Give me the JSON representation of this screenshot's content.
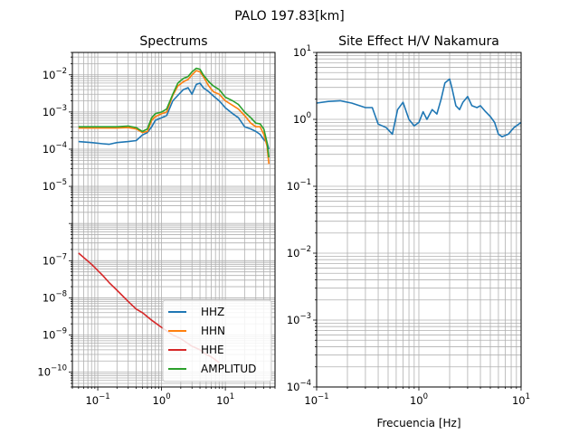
{
  "figure": {
    "suptitle": "PALO 197.83[km]"
  },
  "colors": {
    "HHZ": "#1f77b4",
    "HHN": "#ff7f0e",
    "HHE": "#d62728",
    "AMPLITUD": "#2ca02c",
    "HV": "#1f77b4"
  },
  "chart_data": [
    {
      "type": "line",
      "title": "Spectrums",
      "xlabel": "",
      "ylabel": "",
      "xscale": "log",
      "yscale": "log",
      "xlim": [
        0.04,
        60
      ],
      "ylim": [
        4e-11,
        0.04
      ],
      "grid": true,
      "grid_minor": true,
      "legend_position": "lower-right",
      "x_ticks": [
        {
          "value": 0.1,
          "base": "10",
          "exp": "−1"
        },
        {
          "value": 1,
          "base": "10",
          "exp": "0"
        },
        {
          "value": 10,
          "base": "10",
          "exp": "1"
        }
      ],
      "y_ticks": [
        {
          "value": 1e-10,
          "base": "10",
          "exp": "−10"
        },
        {
          "value": 1e-09,
          "base": "10",
          "exp": "−9"
        },
        {
          "value": 1e-08,
          "base": "10",
          "exp": "−8"
        },
        {
          "value": 1e-07,
          "base": "10",
          "exp": "−7"
        },
        {
          "value": 1e-05,
          "base": "10",
          "exp": "−5"
        },
        {
          "value": 0.0001,
          "base": "10",
          "exp": "−4"
        },
        {
          "value": 0.001,
          "base": "10",
          "exp": "−3"
        },
        {
          "value": 0.01,
          "base": "10",
          "exp": "−2"
        }
      ],
      "series": [
        {
          "name": "HHZ",
          "color": "#1f77b4",
          "points": [
            [
              0.05,
              0.00016
            ],
            [
              0.08,
              0.00015
            ],
            [
              0.12,
              0.00014
            ],
            [
              0.15,
              0.000135
            ],
            [
              0.2,
              0.00015
            ],
            [
              0.3,
              0.00016
            ],
            [
              0.4,
              0.00017
            ],
            [
              0.5,
              0.00024
            ],
            [
              0.6,
              0.00028
            ],
            [
              0.7,
              0.0004
            ],
            [
              0.8,
              0.0006
            ],
            [
              1.0,
              0.0007
            ],
            [
              1.2,
              0.0008
            ],
            [
              1.5,
              0.002
            ],
            [
              1.8,
              0.0028
            ],
            [
              2.2,
              0.004
            ],
            [
              2.6,
              0.0045
            ],
            [
              3.0,
              0.003
            ],
            [
              3.5,
              0.0055
            ],
            [
              4.0,
              0.006
            ],
            [
              4.5,
              0.0045
            ],
            [
              5.5,
              0.0035
            ],
            [
              6.5,
              0.0027
            ],
            [
              8,
              0.002
            ],
            [
              10,
              0.0013
            ],
            [
              13,
              0.0009
            ],
            [
              16,
              0.0007
            ],
            [
              20,
              0.0004
            ],
            [
              25,
              0.00035
            ],
            [
              30,
              0.0003
            ],
            [
              35,
              0.00025
            ],
            [
              40,
              0.00018
            ],
            [
              45,
              0.00015
            ],
            [
              48,
              0.0001
            ]
          ]
        },
        {
          "name": "HHN",
          "color": "#ff7f0e",
          "points": [
            [
              0.05,
              0.00037
            ],
            [
              0.08,
              0.00037
            ],
            [
              0.12,
              0.00037
            ],
            [
              0.2,
              0.00037
            ],
            [
              0.3,
              0.00038
            ],
            [
              0.4,
              0.00035
            ],
            [
              0.5,
              0.00028
            ],
            [
              0.6,
              0.0003
            ],
            [
              0.7,
              0.0006
            ],
            [
              0.8,
              0.00075
            ],
            [
              1.0,
              0.0009
            ],
            [
              1.2,
              0.001
            ],
            [
              1.5,
              0.0028
            ],
            [
              1.8,
              0.005
            ],
            [
              2.2,
              0.0065
            ],
            [
              2.6,
              0.0075
            ],
            [
              3.0,
              0.01
            ],
            [
              3.5,
              0.013
            ],
            [
              4.0,
              0.012
            ],
            [
              4.5,
              0.009
            ],
            [
              5.5,
              0.005
            ],
            [
              6.5,
              0.0035
            ],
            [
              8,
              0.003
            ],
            [
              10,
              0.002
            ],
            [
              13,
              0.0015
            ],
            [
              16,
              0.0012
            ],
            [
              20,
              0.0008
            ],
            [
              25,
              0.0005
            ],
            [
              30,
              0.0004
            ],
            [
              35,
              0.0004
            ],
            [
              40,
              0.00025
            ],
            [
              45,
              0.00012
            ],
            [
              48,
              4e-05
            ]
          ]
        },
        {
          "name": "HHE",
          "color": "#d62728",
          "points": [
            [
              0.05,
              1.6e-07
            ],
            [
              0.08,
              8e-08
            ],
            [
              0.12,
              4e-08
            ],
            [
              0.15,
              2.6e-08
            ],
            [
              0.2,
              1.6e-08
            ],
            [
              0.3,
              8e-09
            ],
            [
              0.4,
              5e-09
            ],
            [
              0.5,
              4e-09
            ],
            [
              0.7,
              2.5e-09
            ],
            [
              1.0,
              1.6e-09
            ],
            [
              1.5,
              1e-09
            ],
            [
              2.0,
              8e-10
            ],
            [
              3.0,
              5e-10
            ],
            [
              4.0,
              4e-10
            ],
            [
              5.0,
              3e-10
            ],
            [
              6.0,
              2.6e-10
            ],
            [
              8,
              1.8e-10
            ]
          ]
        },
        {
          "name": "AMPLITUD",
          "color": "#2ca02c",
          "points": [
            [
              0.05,
              0.0004
            ],
            [
              0.08,
              0.0004
            ],
            [
              0.12,
              0.0004
            ],
            [
              0.2,
              0.0004
            ],
            [
              0.3,
              0.00042
            ],
            [
              0.4,
              0.00038
            ],
            [
              0.5,
              0.0003
            ],
            [
              0.6,
              0.00035
            ],
            [
              0.7,
              0.0007
            ],
            [
              0.8,
              0.0009
            ],
            [
              1.0,
              0.001
            ],
            [
              1.2,
              0.0012
            ],
            [
              1.5,
              0.003
            ],
            [
              1.8,
              0.006
            ],
            [
              2.2,
              0.008
            ],
            [
              2.6,
              0.009
            ],
            [
              3.0,
              0.012
            ],
            [
              3.5,
              0.015
            ],
            [
              4.0,
              0.014
            ],
            [
              4.5,
              0.01
            ],
            [
              5.5,
              0.0065
            ],
            [
              6.5,
              0.005
            ],
            [
              8,
              0.004
            ],
            [
              10,
              0.0025
            ],
            [
              13,
              0.002
            ],
            [
              16,
              0.0016
            ],
            [
              20,
              0.001
            ],
            [
              25,
              0.0007
            ],
            [
              30,
              0.0005
            ],
            [
              35,
              0.00048
            ],
            [
              40,
              0.00035
            ],
            [
              45,
              0.00015
            ],
            [
              48,
              6e-05
            ]
          ]
        }
      ]
    },
    {
      "type": "line",
      "title": "Site Effect H/V Nakamura",
      "xlabel": "Frecuencia [Hz]",
      "ylabel": "",
      "xscale": "log",
      "yscale": "log",
      "xlim": [
        0.1,
        10
      ],
      "ylim": [
        0.0001,
        10
      ],
      "grid": true,
      "grid_minor": true,
      "x_ticks": [
        {
          "value": 0.1,
          "base": "10",
          "exp": "−1"
        },
        {
          "value": 1,
          "base": "10",
          "exp": "0"
        },
        {
          "value": 10,
          "base": "10",
          "exp": "1"
        }
      ],
      "y_ticks": [
        {
          "value": 0.0001,
          "base": "10",
          "exp": "−4"
        },
        {
          "value": 0.001,
          "base": "10",
          "exp": "−3"
        },
        {
          "value": 0.01,
          "base": "10",
          "exp": "−2"
        },
        {
          "value": 0.1,
          "base": "10",
          "exp": "−1"
        },
        {
          "value": 1,
          "base": "10",
          "exp": "0"
        },
        {
          "value": 10,
          "base": "10",
          "exp": "1"
        }
      ],
      "series": [
        {
          "name": "H/V",
          "color": "#1f77b4",
          "points": [
            [
              0.1,
              1.75
            ],
            [
              0.13,
              1.85
            ],
            [
              0.17,
              1.9
            ],
            [
              0.22,
              1.75
            ],
            [
              0.3,
              1.5
            ],
            [
              0.35,
              1.5
            ],
            [
              0.4,
              0.85
            ],
            [
              0.48,
              0.75
            ],
            [
              0.55,
              0.6
            ],
            [
              0.62,
              1.4
            ],
            [
              0.7,
              1.8
            ],
            [
              0.8,
              1.0
            ],
            [
              0.9,
              0.8
            ],
            [
              1.0,
              0.9
            ],
            [
              1.1,
              1.3
            ],
            [
              1.2,
              1.0
            ],
            [
              1.35,
              1.4
            ],
            [
              1.5,
              1.2
            ],
            [
              1.65,
              2.0
            ],
            [
              1.8,
              3.5
            ],
            [
              2.0,
              4.0
            ],
            [
              2.1,
              3.0
            ],
            [
              2.3,
              1.6
            ],
            [
              2.5,
              1.4
            ],
            [
              2.7,
              1.8
            ],
            [
              3.0,
              2.2
            ],
            [
              3.3,
              1.6
            ],
            [
              3.7,
              1.5
            ],
            [
              4.0,
              1.6
            ],
            [
              4.5,
              1.3
            ],
            [
              5.0,
              1.1
            ],
            [
              5.5,
              0.9
            ],
            [
              6.0,
              0.6
            ],
            [
              6.5,
              0.55
            ],
            [
              7.5,
              0.6
            ],
            [
              8.5,
              0.75
            ],
            [
              10,
              0.9
            ]
          ]
        }
      ]
    }
  ]
}
